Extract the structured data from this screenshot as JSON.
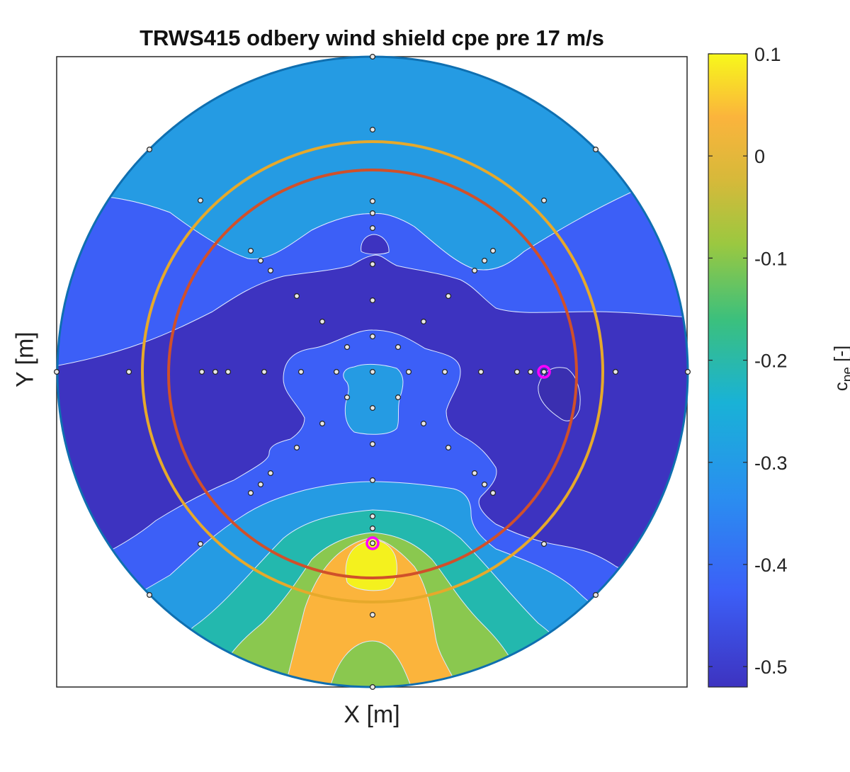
{
  "chart_data": {
    "type": "contour",
    "title": "TRWS415 odbery wind shield cpe pre 17 m/s",
    "xlabel": "X [m]",
    "ylabel": "Y [m]",
    "colorbar": {
      "label_base": "c",
      "label_sub": "pe",
      "label_unit": " [-]",
      "ticks": [
        "0.1",
        "0",
        "-0.1",
        "-0.2",
        "-0.3",
        "-0.4",
        "-0.5"
      ],
      "tick_values": [
        0.1,
        0,
        -0.1,
        -0.2,
        -0.3,
        -0.4,
        -0.5
      ],
      "range": [
        -0.52,
        0.1
      ],
      "colormap": "parula"
    },
    "axis_ticks_visible": false,
    "grid": false,
    "contour_levels": [
      {
        "level": "0.1",
        "color": "#f4f11e"
      },
      {
        "level": "0",
        "color": "#fbb43c"
      },
      {
        "level": "-0.1",
        "color": "#8ac84f"
      },
      {
        "level": "-0.2",
        "color": "#23b8ae"
      },
      {
        "level": "-0.3",
        "color": "#259be3"
      },
      {
        "level": "-0.4",
        "color": "#3c5ff7"
      },
      {
        "level": "-0.5",
        "color": "#3d33c0"
      }
    ],
    "circles": [
      {
        "name": "shield-outline",
        "color": "#0f6fb0"
      },
      {
        "name": "outer-ring",
        "color": "#e6a92b"
      },
      {
        "name": "inner-ring",
        "color": "#d0502a"
      }
    ],
    "highlighted_taps": 2,
    "highlight_color": "#ff00ff"
  }
}
